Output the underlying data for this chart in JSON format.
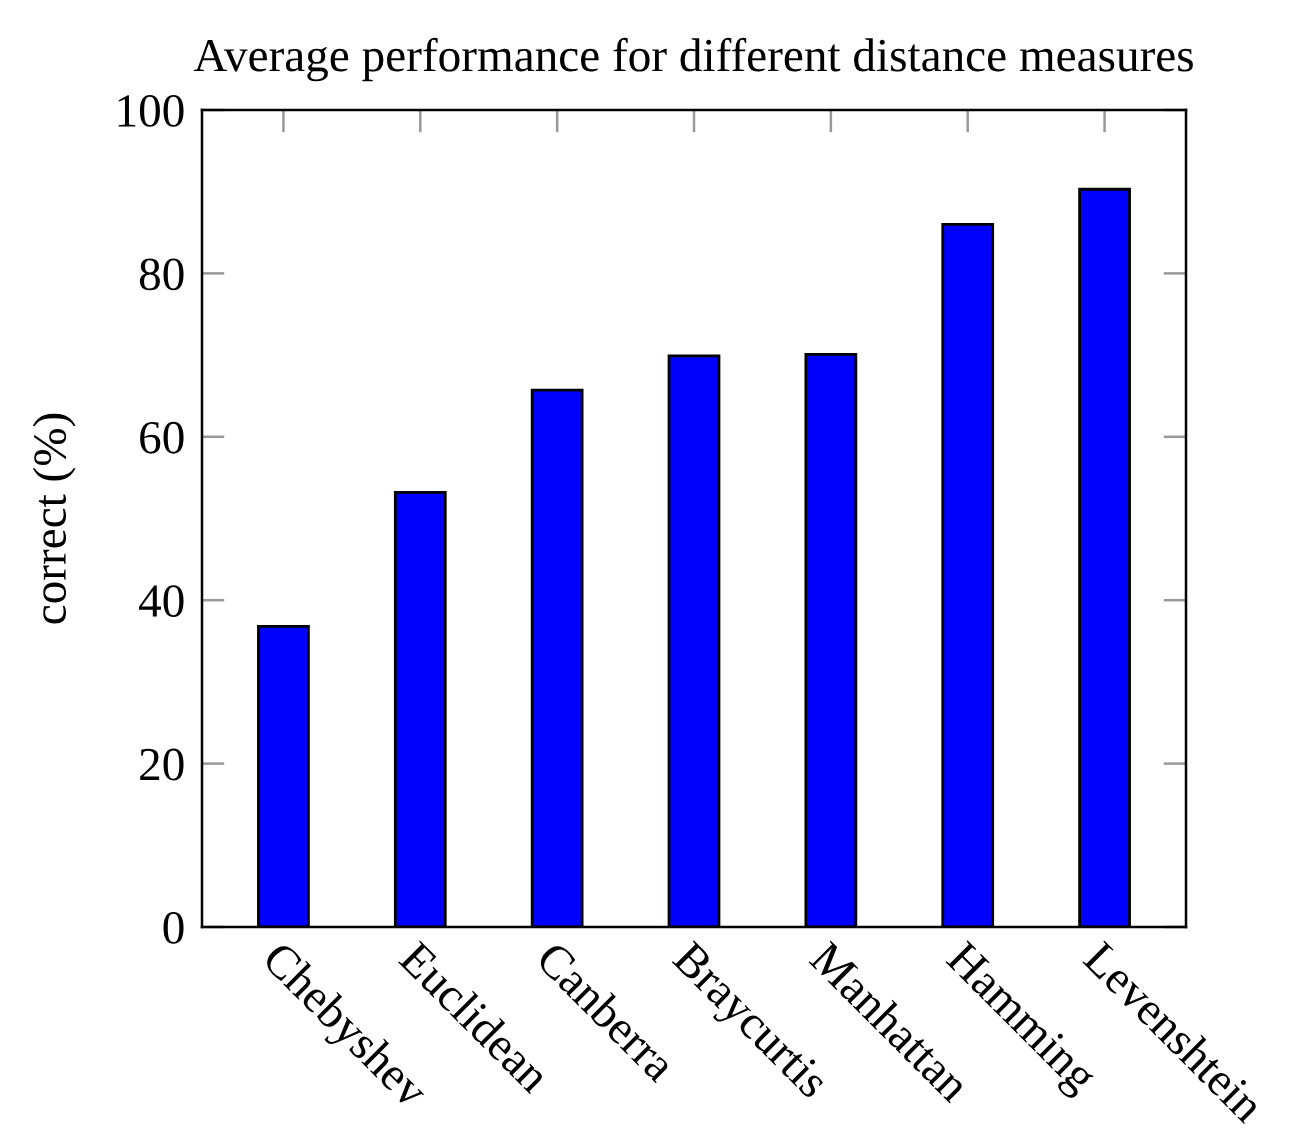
{
  "chart_data": {
    "type": "bar",
    "title": "Average performance for different distance measures",
    "ylabel": "correct (%)",
    "categories": [
      "Chebyshev",
      "Euclidean",
      "Canberra",
      "Braycurtis",
      "Manhattan",
      "Hamming",
      "Levenshtein"
    ],
    "values": [
      36.8,
      53.2,
      65.7,
      69.9,
      70.1,
      86.0,
      90.3
    ],
    "color": "#0000ff",
    "ylim": [
      0,
      100
    ],
    "yticks": [
      0,
      20,
      40,
      60,
      80,
      100
    ],
    "grid": false
  }
}
